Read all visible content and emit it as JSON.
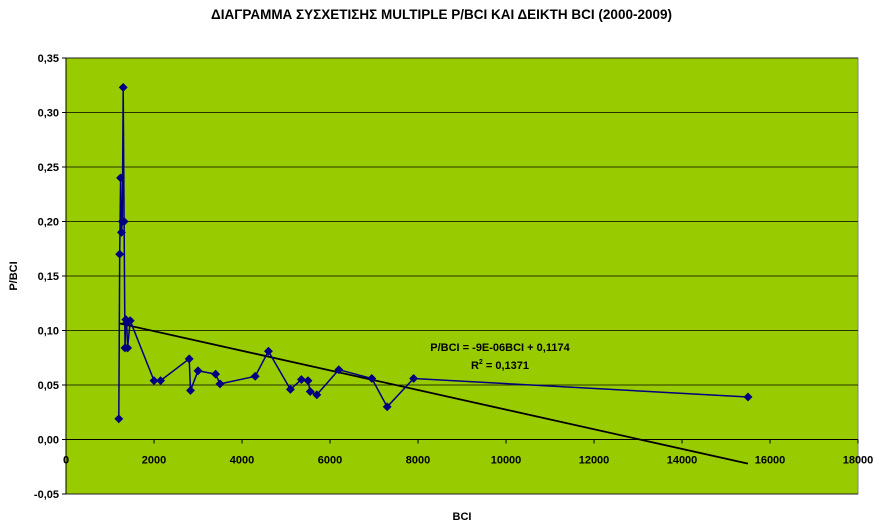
{
  "chart_data": {
    "type": "scatter",
    "title": "ΔΙΑΓΡΑΜΜΑ ΣΥΣΧΕΤΙΣΗΣ MULTIPLE P/BCI ΚΑΙ ΔΕΙΚΤΗ BCI (2000-2009)",
    "xlabel": "BCI",
    "ylabel": "P/BCI",
    "xlim": [
      0,
      18000
    ],
    "ylim": [
      -0.05,
      0.35
    ],
    "x_ticks": [
      "0",
      "2000",
      "4000",
      "6000",
      "8000",
      "10000",
      "12000",
      "14000",
      "16000",
      "18000"
    ],
    "y_ticks": [
      "-0,05",
      "0,00",
      "0,05",
      "0,10",
      "0,15",
      "0,20",
      "0,25",
      "0,30",
      "0,35"
    ],
    "grid": "horizontal",
    "colors": {
      "plot_background": "#99CC00",
      "series": "#000080",
      "gridline": "#000000"
    },
    "series": [
      {
        "points": [
          [
            1200,
            0.019
          ],
          [
            1220,
            0.17
          ],
          [
            1240,
            0.24
          ],
          [
            1260,
            0.19
          ],
          [
            1280,
            0.2
          ],
          [
            1300,
            0.323
          ],
          [
            1320,
            0.2
          ],
          [
            1340,
            0.084
          ],
          [
            1360,
            0.11
          ],
          [
            1380,
            0.107
          ],
          [
            1400,
            0.084
          ],
          [
            1460,
            0.109
          ],
          [
            2000,
            0.054
          ],
          [
            2150,
            0.054
          ],
          [
            2800,
            0.074
          ],
          [
            2830,
            0.045
          ],
          [
            3000,
            0.063
          ],
          [
            3400,
            0.06
          ],
          [
            3500,
            0.051
          ],
          [
            4300,
            0.058
          ],
          [
            4600,
            0.081
          ],
          [
            5100,
            0.046
          ],
          [
            5350,
            0.055
          ],
          [
            5500,
            0.054
          ],
          [
            5550,
            0.044
          ],
          [
            5700,
            0.041
          ],
          [
            6200,
            0.064
          ],
          [
            6950,
            0.056
          ],
          [
            7300,
            0.03
          ],
          [
            7900,
            0.056
          ],
          [
            15500,
            0.039
          ]
        ]
      }
    ],
    "trendline": {
      "type": "linear",
      "x_range": [
        1200,
        15500
      ],
      "slope": -9e-06,
      "intercept": 0.1174,
      "equation": "P/BCI = -9E-06BCI + 0,1174",
      "r2_prefix": "R",
      "r2_sup": "2",
      "r2_value": " = 0,1371"
    }
  }
}
